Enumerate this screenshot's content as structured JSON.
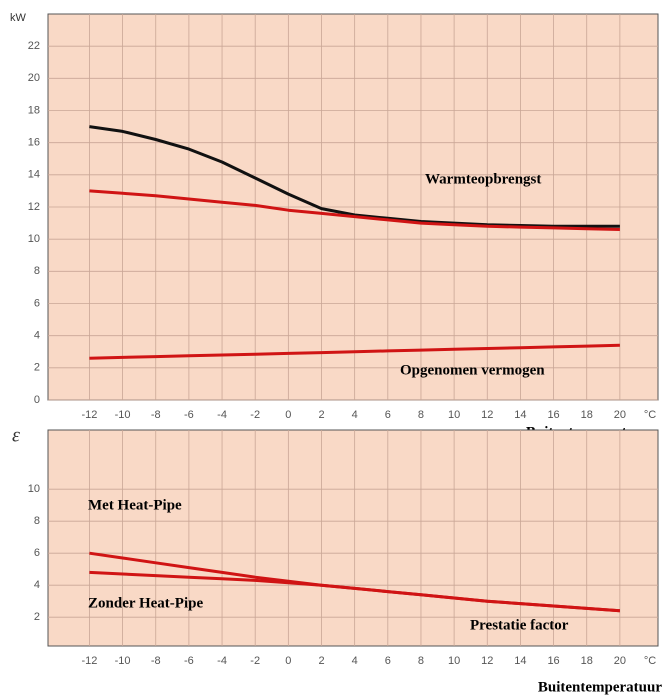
{
  "chart_data": [
    {
      "type": "line",
      "ylabel": "kW",
      "xunit": "°C",
      "xlabel": "Buitentemperatuur",
      "x": [
        -12,
        -10,
        -8,
        -6,
        -4,
        -2,
        0,
        2,
        4,
        6,
        8,
        10,
        12,
        14,
        16,
        18,
        20
      ],
      "series": [
        {
          "color": "#111111",
          "values": [
            17,
            16.7,
            16.2,
            15.6,
            14.8,
            13.8,
            12.8,
            11.9,
            11.5,
            11.3,
            11.1,
            11.0,
            10.9,
            10.85,
            10.8,
            10.8,
            10.8
          ]
        },
        {
          "color": "#d01414",
          "values": [
            13,
            12.85,
            12.7,
            12.5,
            12.3,
            12.1,
            11.8,
            11.6,
            11.4,
            11.2,
            11.0,
            10.9,
            10.8,
            10.75,
            10.7,
            10.65,
            10.6
          ]
        },
        {
          "color": "#d01414",
          "values": [
            2.6,
            2.65,
            2.7,
            2.75,
            2.8,
            2.85,
            2.9,
            2.95,
            3.0,
            3.05,
            3.1,
            3.15,
            3.2,
            3.25,
            3.3,
            3.35,
            3.4
          ]
        }
      ],
      "xlim": [
        -14.5,
        22.3
      ],
      "xticks": [
        -12,
        -10,
        -8,
        -6,
        -4,
        -2,
        0,
        2,
        4,
        6,
        8,
        10,
        12,
        14,
        16,
        18,
        20
      ],
      "ylim": [
        0,
        24
      ],
      "yticks": [
        0,
        2,
        4,
        6,
        8,
        10,
        12,
        14,
        16,
        18,
        20,
        22
      ],
      "grid": true,
      "annotations": [
        "Warmteopbrengst",
        "Opgenomen vermogen"
      ]
    },
    {
      "type": "line",
      "ylabel": "ε",
      "xunit": "°C",
      "xlabel": "Buitentemperatuur",
      "x": [
        -12,
        -10,
        -8,
        -6,
        -4,
        -2,
        0,
        2,
        4,
        6,
        8,
        10,
        12,
        14,
        16,
        18,
        20
      ],
      "series": [
        {
          "color": "#d01414",
          "values": [
            6.0,
            5.7,
            5.4,
            5.1,
            4.8,
            4.5,
            4.25,
            4.0,
            3.8,
            3.6,
            3.4,
            3.2,
            3.0,
            2.85,
            2.7,
            2.55,
            2.4
          ]
        },
        {
          "color": "#d01414",
          "values": [
            4.8,
            4.7,
            4.6,
            4.5,
            4.4,
            4.3,
            4.15,
            4.0,
            3.8,
            3.6,
            3.4,
            3.2,
            3.0,
            2.85,
            2.7,
            2.55,
            2.4
          ]
        }
      ],
      "xlim": [
        -14.5,
        22.3
      ],
      "xticks": [
        -12,
        -10,
        -8,
        -6,
        -4,
        -2,
        0,
        2,
        4,
        6,
        8,
        10,
        12,
        14,
        16,
        18,
        20
      ],
      "ylim": [
        0.2,
        13.7
      ],
      "yticks": [
        2,
        4,
        6,
        8,
        10
      ],
      "grid": true,
      "annotations": [
        "Met Heat-Pipe",
        "Zonder Heat-Pipe",
        "Prestatie factor"
      ]
    }
  ]
}
